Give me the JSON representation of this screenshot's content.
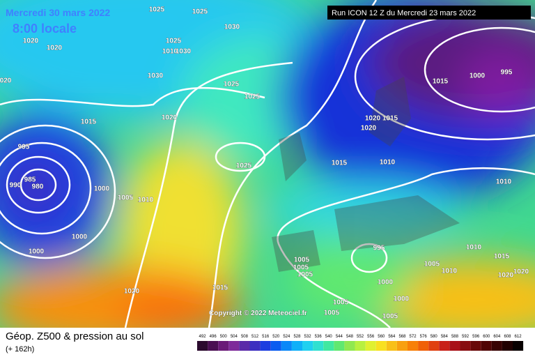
{
  "header": {
    "date": "Mercredi 30 mars 2022",
    "time": "8:00 locale",
    "run": "Run ICON 12 Z du Mercredi 23 mars 2022"
  },
  "isobar_labels": [
    "1025",
    "1025",
    "1030",
    "1020",
    "1020",
    "1025",
    "1010",
    "1030",
    "1030",
    "020",
    "1025",
    "1025",
    "1015",
    "1020",
    "995",
    "985",
    "990",
    "980",
    "1000",
    "1005",
    "1010",
    "1025",
    "1000",
    "1000",
    "1020",
    "1015",
    "1005",
    "1005",
    "1005",
    "995",
    "1000",
    "1000",
    "1005",
    "1005",
    "1005",
    "1015",
    "1010",
    "1020",
    "1015",
    "1020",
    "1015",
    "1000",
    "995",
    "1010",
    "1010",
    "1015",
    "1005",
    "1010",
    "1020",
    "1020"
  ],
  "copyright": "Copyright © 2022 Meteociel.fr",
  "footer": {
    "title": "Géop. Z500 & pression au sol",
    "lead": "(+ 162h)"
  },
  "legend": {
    "values": [
      492,
      496,
      500,
      504,
      508,
      512,
      516,
      520,
      524,
      528,
      532,
      536,
      540,
      544,
      548,
      552,
      556,
      560,
      564,
      568,
      572,
      576,
      580,
      584,
      588,
      592,
      596,
      600,
      604,
      608,
      612
    ],
    "colors": [
      "#2b0a2e",
      "#4a0f52",
      "#6a1a78",
      "#7e2a9a",
      "#5a2aa8",
      "#3c2fc0",
      "#1c3ee0",
      "#0a5cf0",
      "#0a88f8",
      "#10b0f8",
      "#20d0f0",
      "#30e0d0",
      "#40e8a0",
      "#60e870",
      "#90e850",
      "#b8f040",
      "#e0f030",
      "#f8e020",
      "#f8c018",
      "#f8a010",
      "#f88008",
      "#f06008",
      "#e04010",
      "#c82018",
      "#a81018",
      "#880c10",
      "#680808",
      "#500404",
      "#380202",
      "#200000",
      "#080000"
    ]
  }
}
